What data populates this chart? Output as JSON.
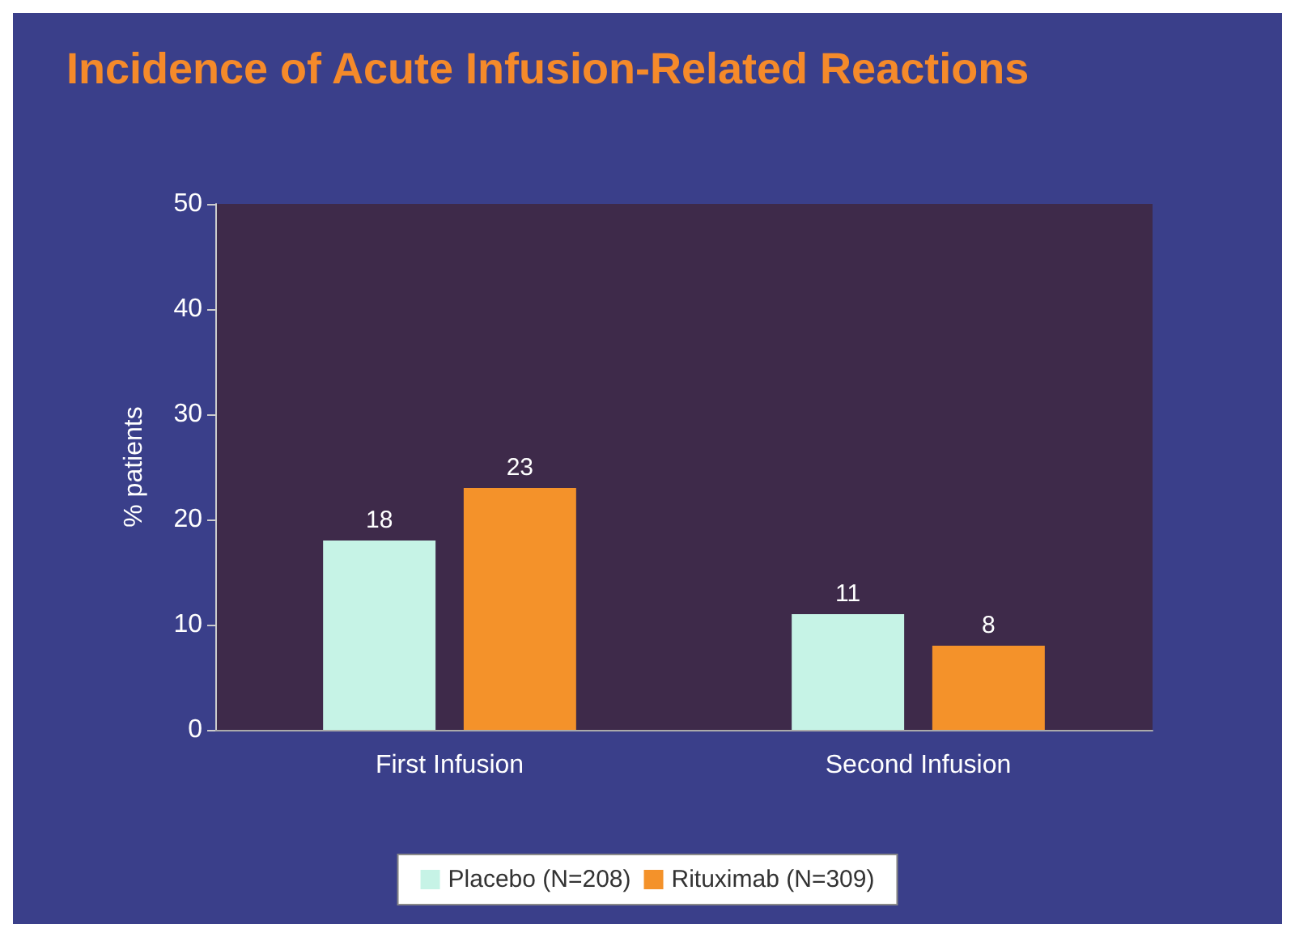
{
  "chart_data": {
    "type": "bar",
    "title": "Incidence of Acute Infusion-Related Reactions",
    "ylabel": "% patients",
    "categories": [
      "First Infusion",
      "Second Infusion"
    ],
    "series": [
      {
        "name": "Placebo (N=208)",
        "color": "#c6f3e6",
        "values": [
          18,
          11
        ]
      },
      {
        "name": "Rituximab (N=309)",
        "color": "#f4922a",
        "values": [
          23,
          8
        ]
      }
    ],
    "ylim": [
      0,
      50
    ],
    "yticks": [
      0,
      10,
      20,
      30,
      40,
      50
    ],
    "grid": false,
    "legend": "bottom",
    "data_labels": true
  }
}
